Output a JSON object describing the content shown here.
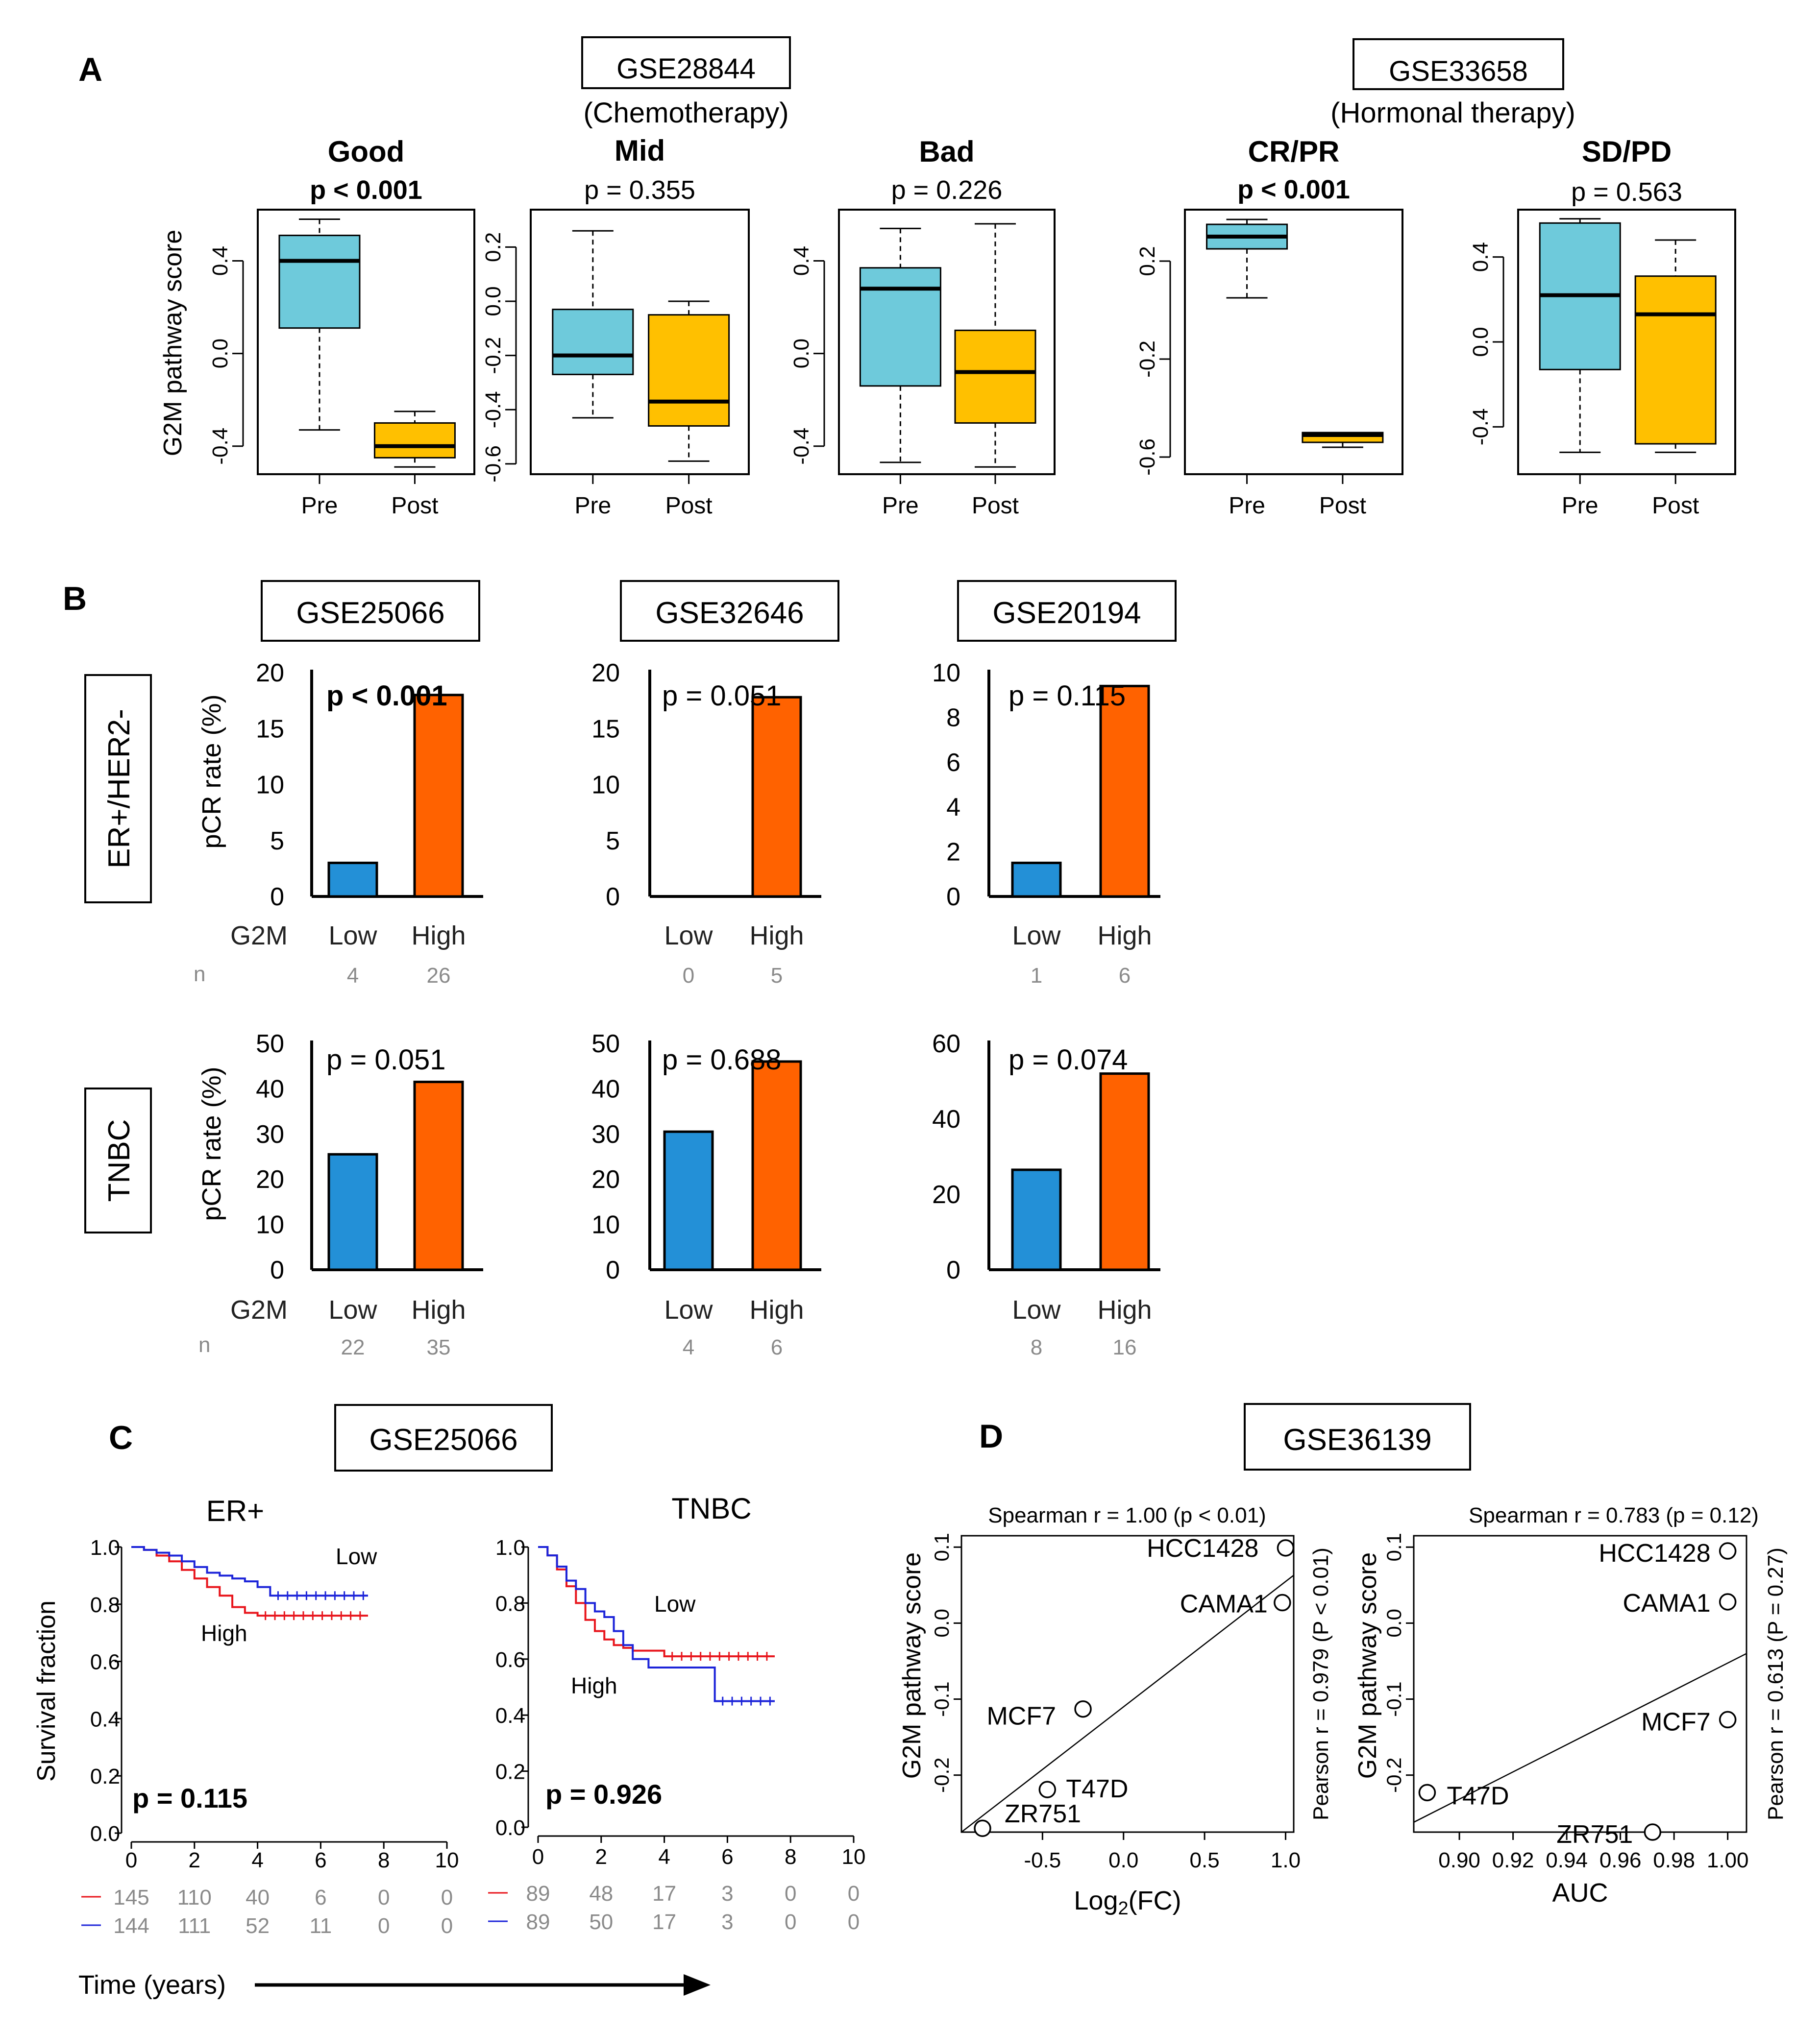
{
  "panel_labels": [
    "A",
    "B",
    "C",
    "D"
  ],
  "A": {
    "gse_left": "GSE28844",
    "therapy_left": "(Chemotherapy)",
    "gse_right": "GSE33658",
    "therapy_right": "(Hormonal therapy)",
    "ylabel": "G2M pathway score",
    "xcats": [
      "Pre",
      "Post"
    ]
  },
  "B": {
    "row_labels": [
      "ER+/HER2-",
      "TNBC"
    ],
    "ylabel": "pCR rate (%)",
    "g2m": "G2M",
    "n_label": "n",
    "datasets": [
      "GSE25066",
      "GSE32646",
      "GSE20194"
    ],
    "categories": [
      "Low",
      "High"
    ]
  },
  "C": {
    "gse": "GSE25066",
    "ylabel": "Survival fraction",
    "xlabel": "Time (years)"
  },
  "D": {
    "gse": "GSE36139",
    "ylabel": "G2M pathway score"
  },
  "colors": {
    "pre": "#6ECADB",
    "post": "#FFC000",
    "low": "#2390D7",
    "high": "#FF6200",
    "km_high": "#E8151C",
    "km_low": "#1C24D9",
    "gray": "#8A8A8A"
  },
  "chart_data": [
    {
      "type": "box",
      "panel": "A",
      "title": "Good",
      "pvalue": "p < 0.001",
      "pbold": true,
      "ylim": [
        -0.5,
        0.6
      ],
      "yticks": [
        "-0.4",
        "0.0",
        "0.4"
      ],
      "series": [
        {
          "name": "Pre",
          "min": -0.33,
          "q1": 0.11,
          "median": 0.4,
          "q3": 0.51,
          "max": 0.58
        },
        {
          "name": "Post",
          "min": -0.49,
          "q1": -0.45,
          "median": -0.4,
          "q3": -0.3,
          "max": -0.25
        }
      ]
    },
    {
      "type": "box",
      "panel": "A",
      "title": "Mid",
      "pvalue": "p = 0.355",
      "pbold": false,
      "ylim": [
        -0.62,
        0.32
      ],
      "yticks": [
        "-0.6",
        "-0.4",
        "-0.2",
        "0.0",
        "0.2"
      ],
      "series": [
        {
          "name": "Pre",
          "min": -0.43,
          "q1": -0.27,
          "median": -0.2,
          "q3": -0.03,
          "max": 0.26
        },
        {
          "name": "Post",
          "min": -0.59,
          "q1": -0.46,
          "median": -0.37,
          "q3": -0.05,
          "max": 0.0
        }
      ]
    },
    {
      "type": "box",
      "panel": "A",
      "title": "Bad",
      "pvalue": "p = 0.226",
      "pbold": false,
      "ylim": [
        -0.5,
        0.6
      ],
      "yticks": [
        "-0.4",
        "0.0",
        "0.4"
      ],
      "series": [
        {
          "name": "Pre",
          "min": -0.47,
          "q1": -0.14,
          "median": 0.28,
          "q3": 0.37,
          "max": 0.54
        },
        {
          "name": "Post",
          "min": -0.49,
          "q1": -0.3,
          "median": -0.08,
          "q3": 0.1,
          "max": 0.56
        }
      ]
    },
    {
      "type": "box",
      "panel": "A",
      "title": "CR/PR",
      "pvalue": "p < 0.001",
      "pbold": true,
      "ylim": [
        -0.65,
        0.39
      ],
      "yticks": [
        "-0.6",
        "-0.2",
        "0.2"
      ],
      "series": [
        {
          "name": "Pre",
          "min": 0.05,
          "q1": 0.25,
          "median": 0.3,
          "q3": 0.35,
          "max": 0.37
        },
        {
          "name": "Post",
          "min": -0.56,
          "q1": -0.54,
          "median": -0.51,
          "q3": -0.5,
          "max": -0.5
        }
      ]
    },
    {
      "type": "box",
      "panel": "A",
      "title": "SD/PD",
      "pvalue": "p = 0.563",
      "pbold": false,
      "ylim": [
        -0.6,
        0.6
      ],
      "yticks": [
        "-0.4",
        "0.0",
        "0.4"
      ],
      "series": [
        {
          "name": "Pre",
          "min": -0.52,
          "q1": -0.13,
          "median": 0.22,
          "q3": 0.56,
          "max": 0.58
        },
        {
          "name": "Post",
          "min": -0.52,
          "q1": -0.48,
          "median": 0.13,
          "q3": 0.31,
          "max": 0.48
        }
      ]
    },
    {
      "type": "bar",
      "panel": "B",
      "row": "ER+/HER2-",
      "dataset": "GSE25066",
      "pvalue": "p < 0.001",
      "pbold": true,
      "categories": [
        "Low",
        "High"
      ],
      "values": [
        3,
        18
      ],
      "n": [
        "4",
        "26"
      ],
      "ylim": [
        0,
        20
      ],
      "yticks": [
        "0",
        "5",
        "10",
        "15",
        "20"
      ]
    },
    {
      "type": "bar",
      "panel": "B",
      "row": "ER+/HER2-",
      "dataset": "GSE32646",
      "pvalue": "p = 0.051",
      "pbold": false,
      "categories": [
        "Low",
        "High"
      ],
      "values": [
        0,
        17.8
      ],
      "n": [
        "0",
        "5"
      ],
      "ylim": [
        0,
        20
      ],
      "yticks": [
        "0",
        "5",
        "10",
        "15",
        "20"
      ]
    },
    {
      "type": "bar",
      "panel": "B",
      "row": "ER+/HER2-",
      "dataset": "GSE20194",
      "pvalue": "p = 0.115",
      "pbold": false,
      "categories": [
        "Low",
        "High"
      ],
      "values": [
        1.5,
        9.4
      ],
      "n": [
        "1",
        "6"
      ],
      "ylim": [
        0,
        10
      ],
      "yticks": [
        "0",
        "2",
        "4",
        "6",
        "8",
        "10"
      ]
    },
    {
      "type": "bar",
      "panel": "B",
      "row": "TNBC",
      "dataset": "GSE25066",
      "pvalue": "p = 0.051",
      "pbold": false,
      "categories": [
        "Low",
        "High"
      ],
      "values": [
        25.5,
        41.5
      ],
      "n": [
        "22",
        "35"
      ],
      "ylim": [
        0,
        50
      ],
      "yticks": [
        "0",
        "10",
        "20",
        "30",
        "40",
        "50"
      ]
    },
    {
      "type": "bar",
      "panel": "B",
      "row": "TNBC",
      "dataset": "GSE32646",
      "pvalue": "p = 0.688",
      "pbold": false,
      "categories": [
        "Low",
        "High"
      ],
      "values": [
        30.5,
        46
      ],
      "n": [
        "4",
        "6"
      ],
      "ylim": [
        0,
        50
      ],
      "yticks": [
        "0",
        "10",
        "20",
        "30",
        "40",
        "50"
      ]
    },
    {
      "type": "bar",
      "panel": "B",
      "row": "TNBC",
      "dataset": "GSE20194",
      "pvalue": "p = 0.074",
      "pbold": false,
      "categories": [
        "Low",
        "High"
      ],
      "values": [
        26.5,
        52
      ],
      "n": [
        "8",
        "16"
      ],
      "ylim": [
        0,
        60
      ],
      "yticks": [
        "0",
        "20",
        "40",
        "60"
      ]
    },
    {
      "type": "line",
      "panel": "C",
      "title": "ER+",
      "pvalue": "p = 0.115",
      "xlim": [
        0,
        10
      ],
      "ylim": [
        0,
        1
      ],
      "xticks": [
        "0",
        "2",
        "4",
        "6",
        "8",
        "10"
      ],
      "yticks": [
        "0.0",
        "0.2",
        "0.4",
        "0.6",
        "0.8",
        "1.0"
      ],
      "annotations": [
        "Low",
        "High"
      ],
      "series": [
        {
          "name": "High",
          "color": "km_high",
          "x": [
            0,
            0.4,
            0.8,
            1.2,
            1.6,
            2.0,
            2.4,
            2.8,
            3.2,
            3.6,
            4.0,
            7.5
          ],
          "y": [
            1.0,
            0.99,
            0.97,
            0.95,
            0.92,
            0.89,
            0.86,
            0.83,
            0.79,
            0.77,
            0.76,
            0.76
          ]
        },
        {
          "name": "Low",
          "color": "km_low",
          "x": [
            0,
            0.4,
            0.8,
            1.2,
            1.6,
            2.0,
            2.4,
            2.8,
            3.2,
            3.6,
            4.0,
            4.4,
            7.5
          ],
          "y": [
            1.0,
            0.99,
            0.98,
            0.97,
            0.95,
            0.93,
            0.91,
            0.9,
            0.89,
            0.88,
            0.86,
            0.83,
            0.83
          ]
        }
      ],
      "at_risk": [
        {
          "color": "km_high",
          "values": [
            "145",
            "110",
            "40",
            "6",
            "0",
            "0"
          ]
        },
        {
          "color": "km_low",
          "values": [
            "144",
            "111",
            "52",
            "11",
            "0",
            "0"
          ]
        }
      ]
    },
    {
      "type": "line",
      "panel": "C",
      "title": "TNBC",
      "pvalue": "p = 0.926",
      "xlim": [
        0,
        10
      ],
      "ylim": [
        0,
        1
      ],
      "xticks": [
        "0",
        "2",
        "4",
        "6",
        "8",
        "10"
      ],
      "yticks": [
        "0.0",
        "0.2",
        "0.4",
        "0.6",
        "0.8",
        "1.0"
      ],
      "annotations": [
        "Low",
        "High"
      ],
      "series": [
        {
          "name": "High",
          "color": "km_high",
          "x": [
            0,
            0.3,
            0.6,
            0.9,
            1.2,
            1.5,
            1.8,
            2.1,
            2.4,
            2.7,
            3.0,
            3.5,
            4.0,
            7.5
          ],
          "y": [
            1.0,
            0.97,
            0.92,
            0.86,
            0.8,
            0.74,
            0.7,
            0.67,
            0.65,
            0.64,
            0.63,
            0.63,
            0.61,
            0.61
          ]
        },
        {
          "name": "Low",
          "color": "km_low",
          "x": [
            0,
            0.3,
            0.6,
            0.9,
            1.2,
            1.5,
            1.8,
            2.1,
            2.4,
            2.7,
            3.0,
            3.5,
            4.0,
            5.6,
            7.5
          ],
          "y": [
            1.0,
            0.97,
            0.93,
            0.88,
            0.85,
            0.8,
            0.77,
            0.75,
            0.7,
            0.65,
            0.6,
            0.57,
            0.57,
            0.45,
            0.45
          ]
        }
      ],
      "at_risk": [
        {
          "color": "km_high",
          "values": [
            "89",
            "48",
            "17",
            "3",
            "0",
            "0"
          ]
        },
        {
          "color": "km_low",
          "values": [
            "89",
            "50",
            "17",
            "3",
            "0",
            "0"
          ]
        }
      ]
    },
    {
      "type": "scatter",
      "panel": "D",
      "title": "Spearman r = 1.00 (p < 0.01)",
      "pearson": "Pearson r = 0.979 (P < 0.01)",
      "xlabel_main": "Log",
      "xlabel_sub": "2",
      "xlabel_rest": "(FC)",
      "xlim": [
        -1.0,
        1.05
      ],
      "ylim": [
        -0.275,
        0.115
      ],
      "xticks": [
        "-0.5",
        "0.0",
        "0.5",
        "1.0"
      ],
      "xtickv": [
        -0.5,
        0,
        0.5,
        1.0
      ],
      "yticks": [
        "-0.2",
        "-0.1",
        "0.0",
        "0.1"
      ],
      "ytickv": [
        -0.2,
        -0.1,
        0,
        0.1
      ],
      "points": [
        {
          "label": "HCC1428",
          "x": 1.0,
          "y": 0.099
        },
        {
          "label": "CAMA1",
          "x": 0.98,
          "y": 0.027
        },
        {
          "label": "MCF7",
          "x": -0.25,
          "y": -0.113
        },
        {
          "label": "T47D",
          "x": -0.47,
          "y": -0.219
        },
        {
          "label": "ZR751",
          "x": -0.87,
          "y": -0.27
        }
      ],
      "fit": {
        "x": [
          -1.0,
          1.05
        ],
        "y": [
          -0.275,
          0.063
        ]
      }
    },
    {
      "type": "scatter",
      "panel": "D",
      "title": "Spearman r = 0.783 (p = 0.12)",
      "pearson": "Pearson r = 0.613 (P = 0.27)",
      "xlabel_main": "AUC",
      "xlabel_sub": "",
      "xlabel_rest": "",
      "xlim": [
        0.883,
        1.007
      ],
      "ylim": [
        -0.275,
        0.115
      ],
      "xticks": [
        "0.90",
        "0.92",
        "0.94",
        "0.96",
        "0.98",
        "1.00"
      ],
      "xtickv": [
        0.9,
        0.92,
        0.94,
        0.96,
        0.98,
        1.0
      ],
      "yticks": [
        "-0.2",
        "-0.1",
        "0.0",
        "0.1"
      ],
      "ytickv": [
        -0.2,
        -0.1,
        0,
        0.1
      ],
      "points": [
        {
          "label": "HCC1428",
          "x": 1.0,
          "y": 0.095
        },
        {
          "label": "CAMA1",
          "x": 1.0,
          "y": 0.028
        },
        {
          "label": "MCF7",
          "x": 1.0,
          "y": -0.127
        },
        {
          "label": "T47D",
          "x": 0.888,
          "y": -0.223
        },
        {
          "label": "ZR751",
          "x": 0.972,
          "y": -0.275
        }
      ],
      "fit": {
        "x": [
          0.883,
          1.007
        ],
        "y": [
          -0.262,
          -0.04
        ]
      }
    }
  ]
}
